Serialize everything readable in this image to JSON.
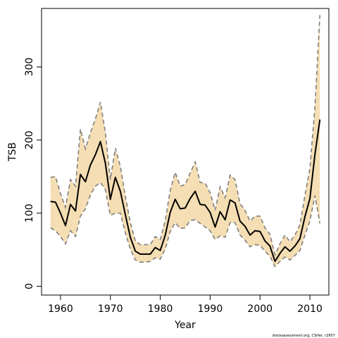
{
  "chart_data": {
    "type": "line",
    "xlabel": "Year",
    "ylabel": "TSB",
    "credit": "stockassessment.org, CSHer, r2657",
    "xlim": [
      1956.2,
      2013.8
    ],
    "ylim": [
      -12,
      380
    ],
    "x_ticks": [
      1960,
      1970,
      1980,
      1990,
      2000,
      2010
    ],
    "x_tick_labels": [
      "1960",
      "1970",
      "1980",
      "1990",
      "2000",
      "2010"
    ],
    "y_ticks": [
      0,
      100,
      200,
      300
    ],
    "y_tick_labels": [
      "0",
      "100",
      "200",
      "300"
    ],
    "colors": {
      "band": "#f5deb3",
      "bounds": "#808080",
      "estimate": "#000000"
    },
    "x": [
      1958,
      1959,
      1960,
      1961,
      1962,
      1963,
      1964,
      1965,
      1966,
      1967,
      1968,
      1969,
      1970,
      1971,
      1972,
      1973,
      1974,
      1975,
      1976,
      1977,
      1978,
      1979,
      1980,
      1981,
      1982,
      1983,
      1984,
      1985,
      1986,
      1987,
      1988,
      1989,
      1990,
      1991,
      1992,
      1993,
      1994,
      1995,
      1996,
      1997,
      1998,
      1999,
      2000,
      2001,
      2002,
      2003,
      2004,
      2005,
      2006,
      2007,
      2008,
      2009,
      2010,
      2011,
      2012
    ],
    "series": [
      {
        "role": "estimate",
        "values": [
          116,
          115,
          100,
          83,
          112,
          103,
          153,
          143,
          166,
          180,
          198,
          168,
          119,
          149,
          130,
          98,
          67,
          48,
          44,
          44,
          44,
          53,
          49,
          70,
          101,
          119,
          106,
          107,
          120,
          130,
          112,
          111,
          101,
          81,
          102,
          91,
          118,
          114,
          89,
          82,
          70,
          76,
          75,
          62,
          55,
          34,
          45,
          54,
          48,
          55,
          65,
          95,
          120,
          180,
          228
        ]
      },
      {
        "role": "upper",
        "values": [
          149,
          150,
          127,
          108,
          146,
          137,
          215,
          188,
          210,
          229,
          252,
          210,
          146,
          189,
          164,
          123,
          87,
          62,
          57,
          57,
          57,
          68,
          64,
          90,
          131,
          156,
          137,
          139,
          155,
          170,
          142,
          141,
          128,
          104,
          136,
          121,
          152,
          146,
          113,
          104,
          89,
          96,
          96,
          80,
          71,
          43,
          58,
          70,
          61,
          70,
          84,
          124,
          161,
          245,
          371
        ]
      },
      {
        "role": "lower",
        "values": [
          80,
          76,
          68,
          58,
          76,
          68,
          96,
          106,
          125,
          137,
          142,
          132,
          97,
          100,
          100,
          73,
          51,
          36,
          33,
          33,
          34,
          39,
          37,
          51,
          75,
          87,
          79,
          80,
          90,
          91,
          86,
          81,
          76,
          64,
          69,
          67,
          87,
          87,
          70,
          63,
          54,
          57,
          56,
          48,
          41,
          27,
          34,
          40,
          36,
          42,
          49,
          70,
          89,
          124,
          86
        ]
      }
    ]
  }
}
